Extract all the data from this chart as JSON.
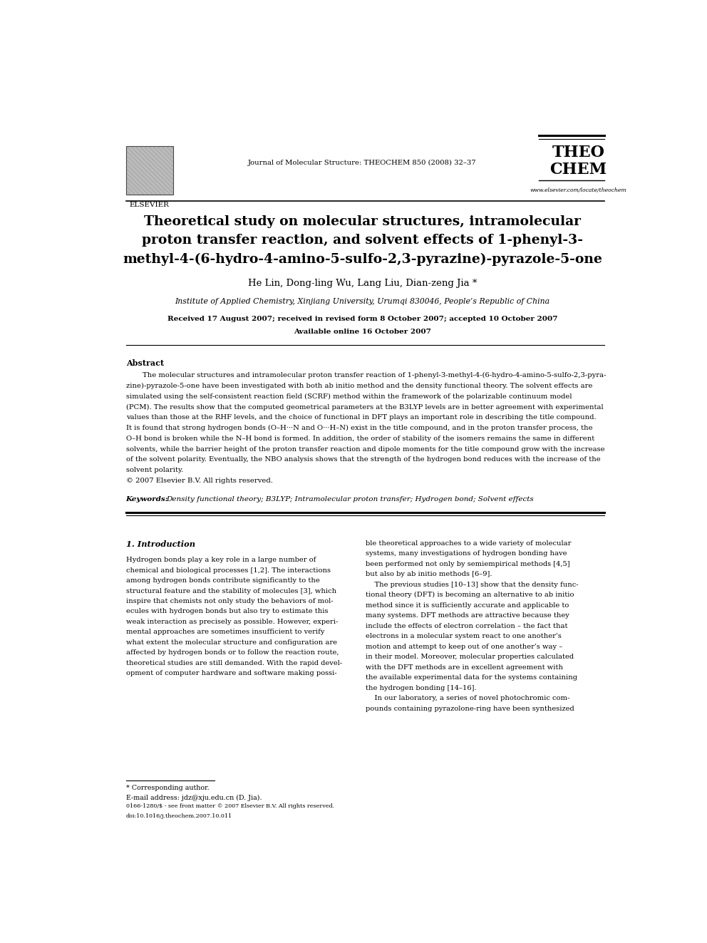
{
  "page_width": 9.92,
  "page_height": 13.23,
  "bg_color": "#ffffff",
  "journal_name": "Journal of Molecular Structure: THEOCHEM 850 (2008) 32–37",
  "journal_brand_line1": "THEO",
  "journal_brand_line2": "CHEM",
  "journal_url": "www.elsevier.com/locate/theochem",
  "elsevier_text": "ELSEVIER",
  "title_line1": "Theoretical study on molecular structures, intramolecular",
  "title_line2": "proton transfer reaction, and solvent effects of 1-phenyl-3-",
  "title_line3": "methyl-4-(6-hydro-4-amino-5-sulfo-2,3-pyrazine)-pyrazole-5-one",
  "authors": "He Lin, Dong-ling Wu, Lang Liu, Dian-zeng Jia *",
  "affiliation": "Institute of Applied Chemistry, Xinjiang University, Urumqi 830046, People’s Republic of China",
  "received": "Received 17 August 2007; received in revised form 8 October 2007; accepted 10 October 2007",
  "available": "Available online 16 October 2007",
  "abstract_heading": "Abstract",
  "abstract_text": "The molecular structures and intramolecular proton transfer reaction of 1-phenyl-3-methyl-4-(6-hydro-4-amino-5-sulfo-2,3-pyra-\nzine)-pyrazole-5-one have been investigated with both ab initio method and the density functional theory. The solvent effects are\nsimulated using the self-consistent reaction field (SCRF) method within the framework of the polarizable continuum model\n(PCM). The results show that the computed geometrical parameters at the B3LYP levels are in better agreement with experimental\nvalues than those at the RHF levels, and the choice of functional in DFT plays an important role in describing the title compound.\nIt is found that strong hydrogen bonds (O–H···N and O···H–N) exist in the title compound, and in the proton transfer process, the\nO–H bond is broken while the N–H bond is formed. In addition, the order of stability of the isomers remains the same in different\nsolvents, while the barrier height of the proton transfer reaction and dipole moments for the title compound grow with the increase\nof the solvent polarity. Eventually, the NBO analysis shows that the strength of the hydrogen bond reduces with the increase of the\nsolvent polarity.\n© 2007 Elsevier B.V. All rights reserved.",
  "keywords_label": "Keywords:",
  "keywords_text": "Density functional theory; B3LYP; Intramolecular proton transfer; Hydrogen bond; Solvent effects",
  "section1_heading": "1. Introduction",
  "intro_left": "Hydrogen bonds play a key role in a large number of\nchemical and biological processes [1,2]. The interactions\namong hydrogen bonds contribute significantly to the\nstructural feature and the stability of molecules [3], which\ninspire that chemists not only study the behaviors of mol-\necules with hydrogen bonds but also try to estimate this\nweak interaction as precisely as possible. However, experi-\nmental approaches are sometimes insufficient to verify\nwhat extent the molecular structure and configuration are\naffected by hydrogen bonds or to follow the reaction route,\ntheoretical studies are still demanded. With the rapid devel-\nopment of computer hardware and software making possi-",
  "intro_right": "ble theoretical approaches to a wide variety of molecular\nsystems, many investigations of hydrogen bonding have\nbeen performed not only by semiempirical methods [4,5]\nbut also by ab initio methods [6–9].\n    The previous studies [10–13] show that the density func-\ntional theory (DFT) is becoming an alternative to ab initio\nmethod since it is sufficiently accurate and applicable to\nmany systems. DFT methods are attractive because they\ninclude the effects of electron correlation – the fact that\nelectrons in a molecular system react to one another’s\nmotion and attempt to keep out of one another’s way –\nin their model. Moreover, molecular properties calculated\nwith the DFT methods are in excellent agreement with\nthe available experimental data for the systems containing\nthe hydrogen bonding [14–16].\n    In our laboratory, a series of novel photochromic com-\npounds containing pyrazolone-ring have been synthesized",
  "footnote_star": "* Corresponding author.",
  "footnote_email": "E-mail address: jdz@xju.edu.cn (D. Jia).",
  "footer_text": "0166-1280/$ - see front matter © 2007 Elsevier B.V. All rights reserved.\ndoi:10.1016/j.theochem.2007.10.011"
}
